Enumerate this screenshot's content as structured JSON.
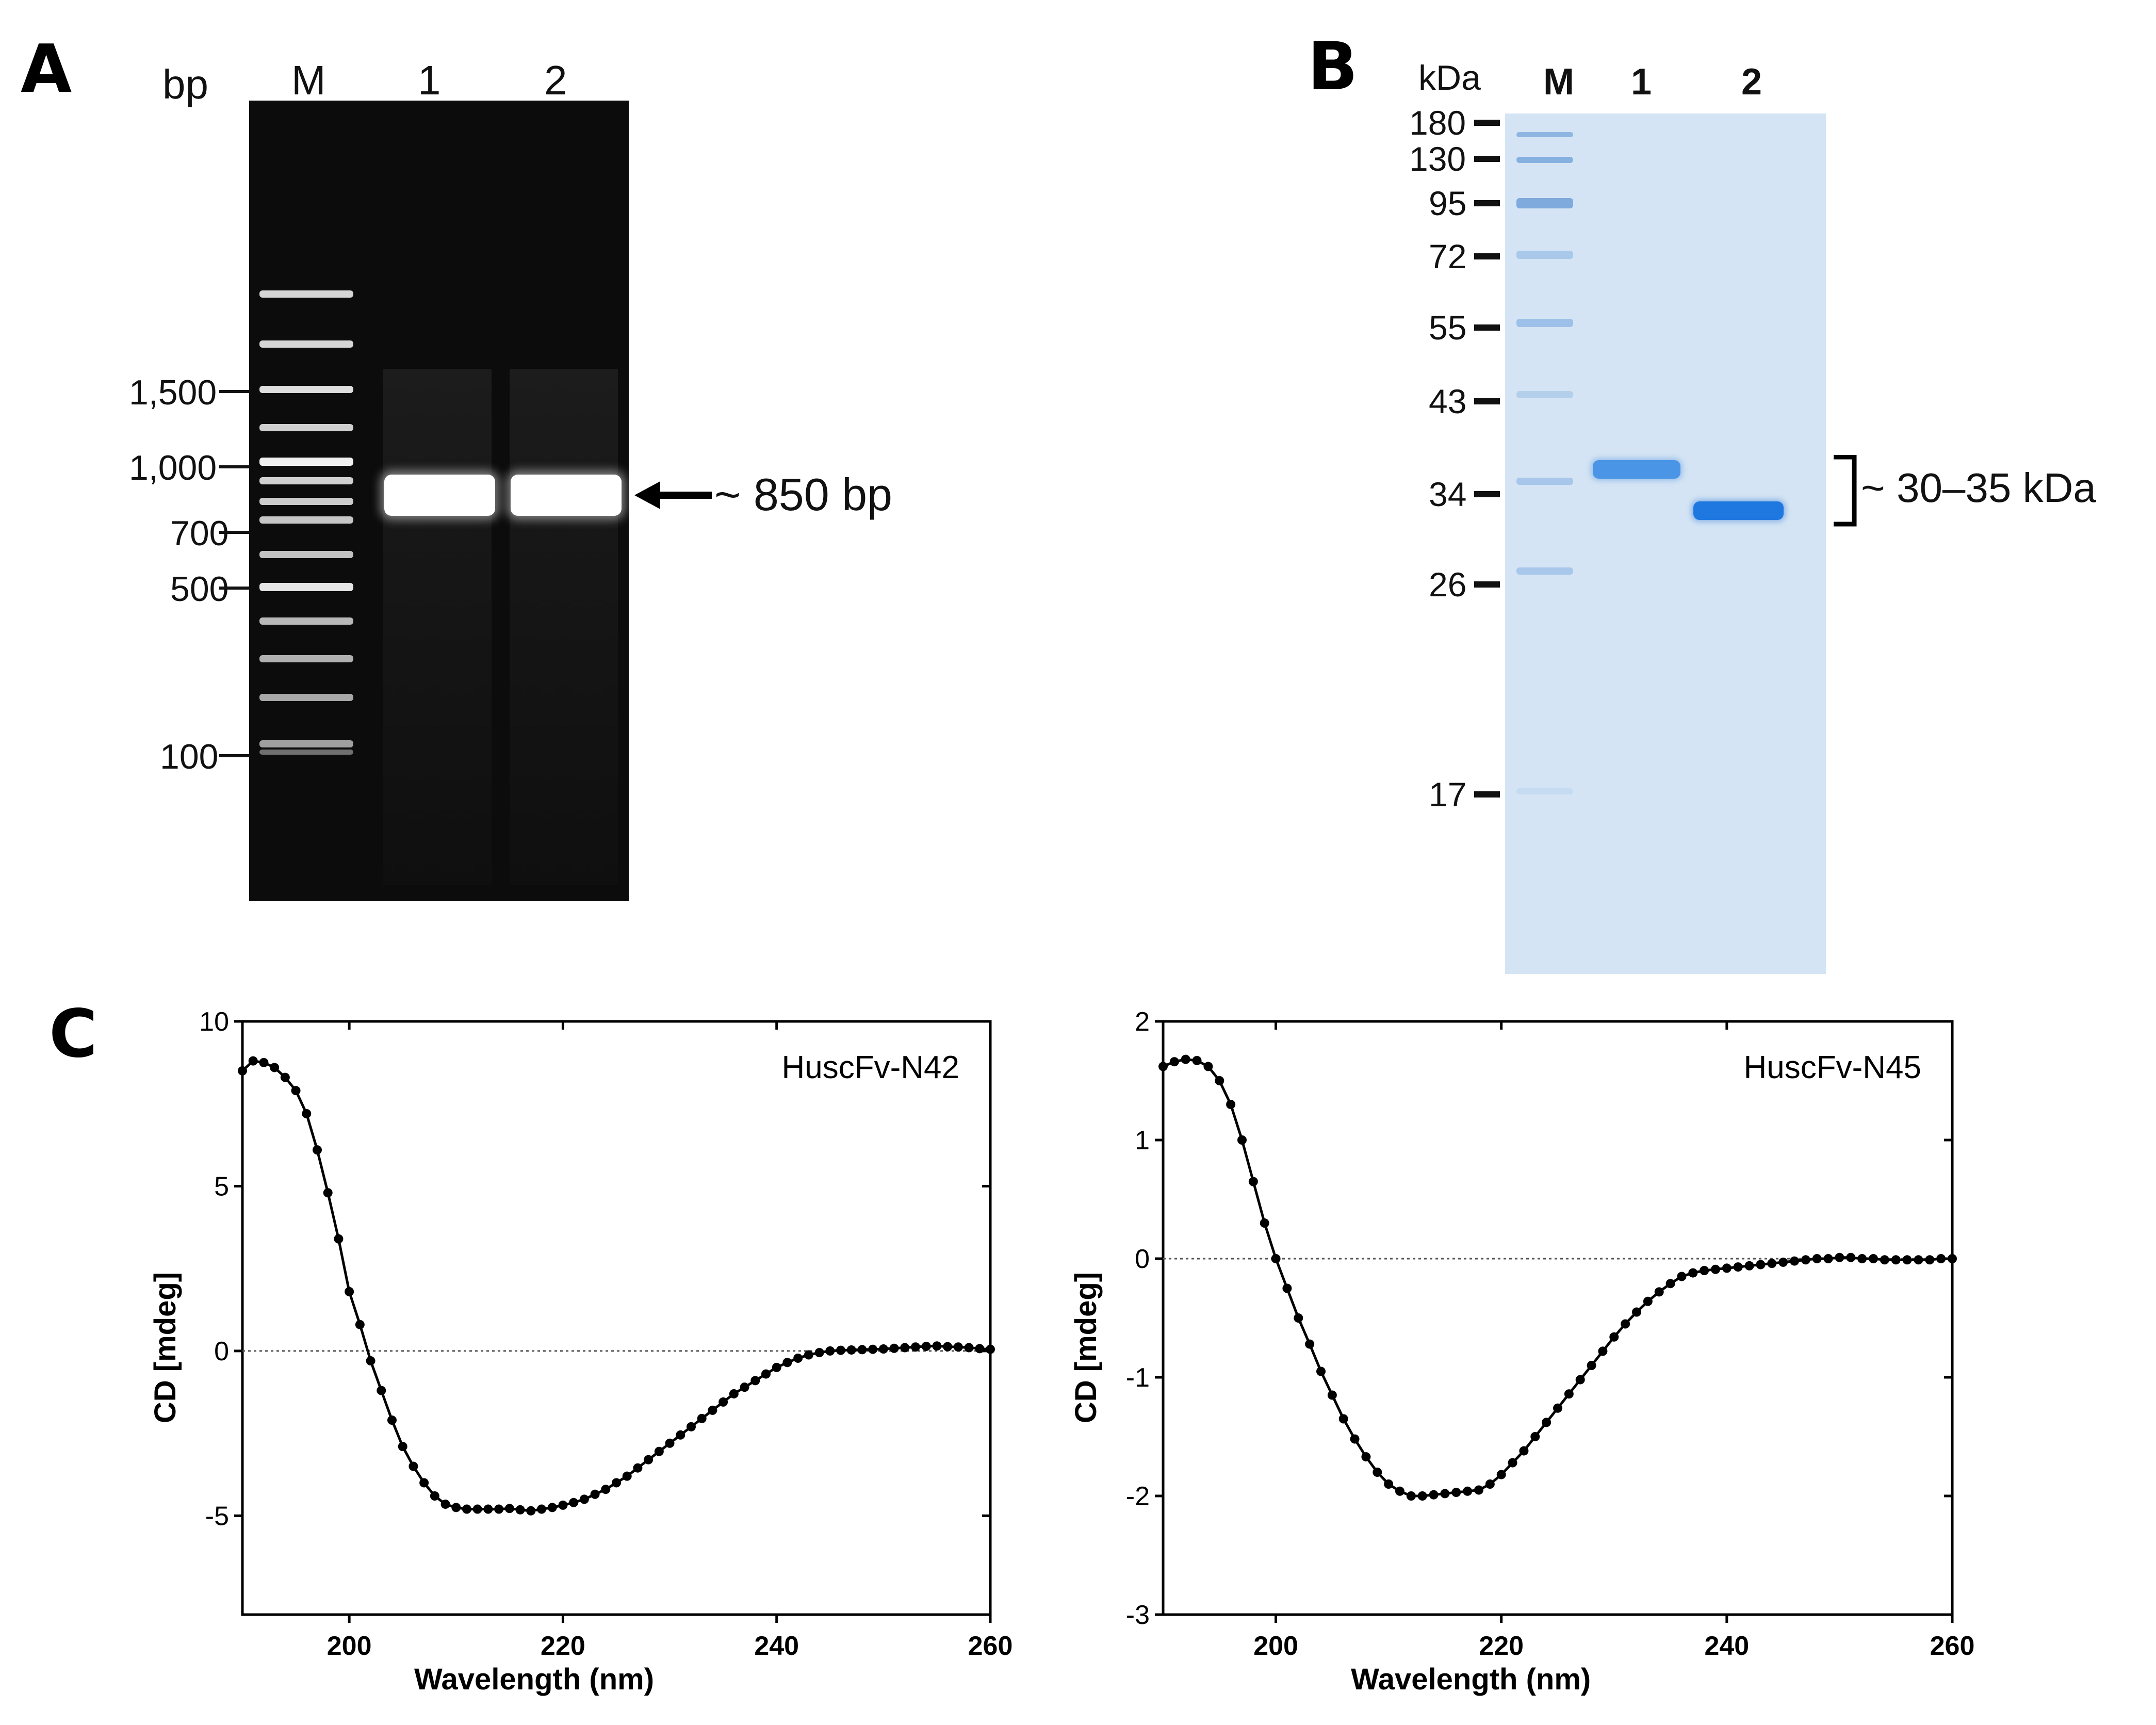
{
  "panelA": {
    "letter": "A",
    "unit_label": "bp",
    "lane_labels": [
      "M",
      "1",
      "2"
    ],
    "ladder_ticks": [
      "1,500",
      "1,000",
      "700",
      "500",
      "100"
    ],
    "annotation": "~ 850 bp"
  },
  "panelB": {
    "letter": "B",
    "unit_label": "kDa",
    "lane_labels": [
      "M",
      "1",
      "2"
    ],
    "ladder_ticks": [
      "180",
      "130",
      "95",
      "72",
      "55",
      "43",
      "34",
      "26",
      "17"
    ],
    "annotation": "~ 30–35 kDa"
  },
  "panelC": {
    "letter": "C"
  },
  "chart_data": [
    {
      "type": "line",
      "title": "HuscFv-N42",
      "xlabel": "Wavelength (nm)",
      "ylabel": "CD [mdeg]",
      "xlim": [
        190,
        260
      ],
      "ylim": [
        -8,
        10
      ],
      "xticks": [
        200,
        220,
        240,
        260
      ],
      "yticks": [
        10,
        5,
        0,
        -5
      ],
      "ytick_labels": [
        "10",
        "5",
        "0",
        "-5"
      ],
      "xtick_labels": [
        "200",
        "220",
        "240",
        "260"
      ],
      "zero_line": true,
      "series": [
        {
          "name": "HuscFv-N42",
          "x": [
            190,
            191,
            192,
            193,
            194,
            195,
            196,
            197,
            198,
            199,
            200,
            201,
            202,
            203,
            204,
            205,
            206,
            207,
            208,
            209,
            210,
            211,
            212,
            213,
            214,
            215,
            216,
            217,
            218,
            219,
            220,
            221,
            222,
            223,
            224,
            225,
            226,
            227,
            228,
            229,
            230,
            231,
            232,
            233,
            234,
            235,
            236,
            237,
            238,
            239,
            240,
            241,
            242,
            243,
            244,
            245,
            246,
            247,
            248,
            249,
            250,
            251,
            252,
            253,
            254,
            255,
            256,
            257,
            258,
            259,
            260
          ],
          "values": [
            8.5,
            8.8,
            8.75,
            8.6,
            8.3,
            7.9,
            7.2,
            6.1,
            4.8,
            3.4,
            1.8,
            0.8,
            -0.3,
            -1.2,
            -2.1,
            -2.9,
            -3.5,
            -4.0,
            -4.4,
            -4.65,
            -4.75,
            -4.8,
            -4.8,
            -4.8,
            -4.8,
            -4.78,
            -4.82,
            -4.85,
            -4.8,
            -4.75,
            -4.68,
            -4.6,
            -4.5,
            -4.35,
            -4.2,
            -4.0,
            -3.8,
            -3.55,
            -3.3,
            -3.05,
            -2.8,
            -2.55,
            -2.3,
            -2.05,
            -1.8,
            -1.55,
            -1.3,
            -1.1,
            -0.9,
            -0.7,
            -0.5,
            -0.35,
            -0.22,
            -0.12,
            -0.05,
            0.0,
            0.02,
            0.03,
            0.04,
            0.05,
            0.06,
            0.08,
            0.1,
            0.12,
            0.14,
            0.15,
            0.13,
            0.12,
            0.1,
            0.07,
            0.05
          ]
        }
      ]
    },
    {
      "type": "line",
      "title": "HuscFv-N45",
      "xlabel": "Wavelength (nm)",
      "ylabel": "CD [mdeg]",
      "xlim": [
        190,
        260
      ],
      "ylim": [
        -3,
        2
      ],
      "xticks": [
        200,
        220,
        240,
        260
      ],
      "yticks": [
        2,
        1,
        0,
        -1,
        -2,
        -3
      ],
      "ytick_labels": [
        "2",
        "1",
        "0",
        "-1",
        "-2",
        "-3"
      ],
      "xtick_labels": [
        "200",
        "220",
        "240",
        "260"
      ],
      "zero_line": true,
      "series": [
        {
          "name": "HuscFv-N45",
          "x": [
            190,
            191,
            192,
            193,
            194,
            195,
            196,
            197,
            198,
            199,
            200,
            201,
            202,
            203,
            204,
            205,
            206,
            207,
            208,
            209,
            210,
            211,
            212,
            213,
            214,
            215,
            216,
            217,
            218,
            219,
            220,
            221,
            222,
            223,
            224,
            225,
            226,
            227,
            228,
            229,
            230,
            231,
            232,
            233,
            234,
            235,
            236,
            237,
            238,
            239,
            240,
            241,
            242,
            243,
            244,
            245,
            246,
            247,
            248,
            249,
            250,
            251,
            252,
            253,
            254,
            255,
            256,
            257,
            258,
            259,
            260
          ],
          "values": [
            1.62,
            1.66,
            1.68,
            1.67,
            1.62,
            1.5,
            1.3,
            1.0,
            0.65,
            0.3,
            0.0,
            -0.25,
            -0.5,
            -0.72,
            -0.95,
            -1.15,
            -1.35,
            -1.52,
            -1.67,
            -1.8,
            -1.9,
            -1.96,
            -2.0,
            -2.0,
            -1.99,
            -1.98,
            -1.97,
            -1.96,
            -1.95,
            -1.9,
            -1.82,
            -1.72,
            -1.62,
            -1.5,
            -1.38,
            -1.26,
            -1.14,
            -1.02,
            -0.9,
            -0.78,
            -0.66,
            -0.55,
            -0.45,
            -0.36,
            -0.28,
            -0.21,
            -0.15,
            -0.12,
            -0.1,
            -0.09,
            -0.08,
            -0.07,
            -0.06,
            -0.05,
            -0.04,
            -0.03,
            -0.02,
            -0.01,
            0.0,
            0.0,
            0.01,
            0.01,
            0.0,
            0.0,
            -0.01,
            -0.01,
            -0.01,
            -0.01,
            -0.01,
            0.0,
            0.0
          ]
        }
      ]
    }
  ]
}
